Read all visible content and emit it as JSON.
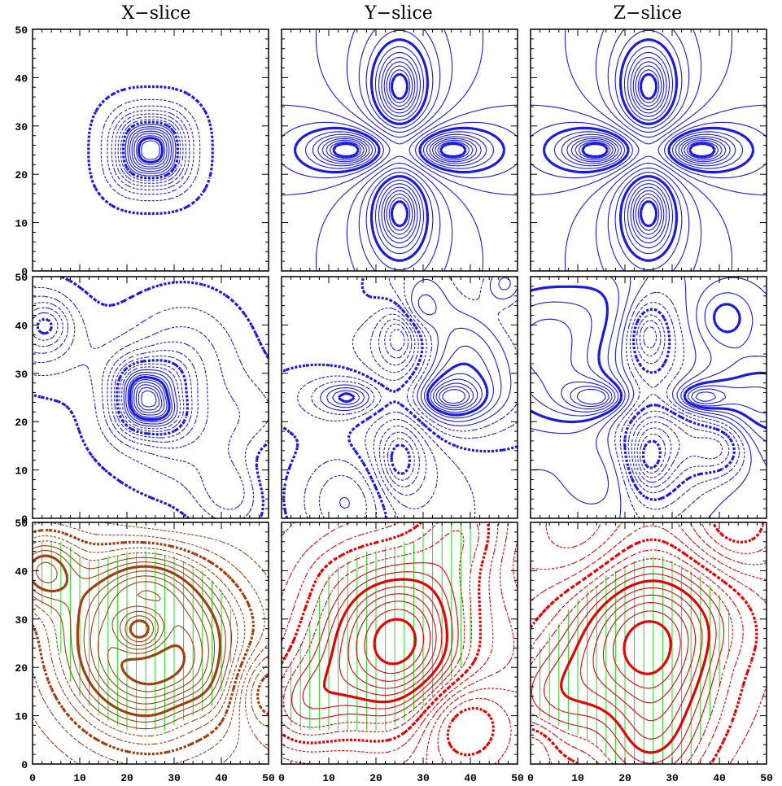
{
  "chart_data": {
    "type": "contour",
    "layout": {
      "rows": 3,
      "cols": 3
    },
    "column_titles": [
      "X−slice",
      "Y−slice",
      "Z−slice"
    ],
    "xlim": [
      0,
      50
    ],
    "ylim": [
      0,
      50
    ],
    "x_ticks": [
      "0",
      "10",
      "20",
      "30",
      "40",
      "50"
    ],
    "y_ticks": [
      "0",
      "10",
      "20",
      "30",
      "40",
      "50"
    ],
    "colors": {
      "row1": "#1a1adc",
      "row2": "#1a1adc",
      "row3_primary": "#e60000",
      "row3_secondary": "#22dd22",
      "row3_overlap": "#a04010",
      "frame": "#000000"
    },
    "panels": [
      {
        "row": 1,
        "col": 1,
        "slice": "X",
        "pattern": "ring",
        "center": [
          25,
          25
        ]
      },
      {
        "row": 1,
        "col": 2,
        "slice": "Y",
        "pattern": "dipole",
        "center": [
          25,
          25
        ]
      },
      {
        "row": 1,
        "col": 3,
        "slice": "Z",
        "pattern": "dipole",
        "center": [
          25,
          25
        ]
      },
      {
        "row": 2,
        "col": 1,
        "slice": "X",
        "pattern": "noisy-ring",
        "center": [
          25,
          25
        ]
      },
      {
        "row": 2,
        "col": 2,
        "slice": "Y",
        "pattern": "noisy-dipole",
        "center": [
          25,
          25
        ]
      },
      {
        "row": 2,
        "col": 3,
        "slice": "Z",
        "pattern": "noisy-dipole",
        "center": [
          25,
          25
        ]
      },
      {
        "row": 3,
        "col": 1,
        "slice": "X",
        "pattern": "overlay",
        "center": [
          25,
          25
        ]
      },
      {
        "row": 3,
        "col": 2,
        "slice": "Y",
        "pattern": "overlay",
        "center": [
          25,
          25
        ]
      },
      {
        "row": 3,
        "col": 3,
        "slice": "Z",
        "pattern": "overlay",
        "center": [
          25,
          25
        ]
      }
    ]
  }
}
